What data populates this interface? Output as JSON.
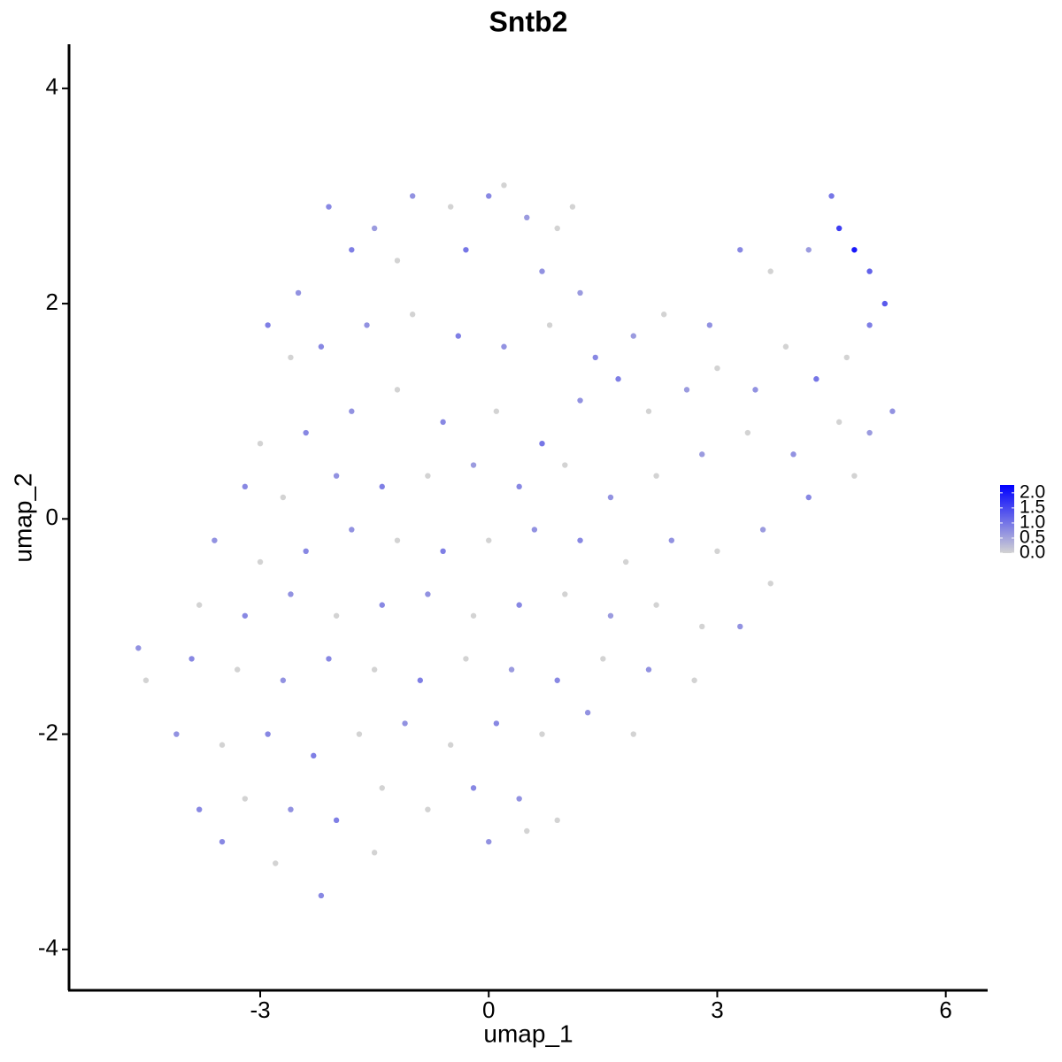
{
  "chart_data": {
    "type": "scatter",
    "title": "Sntb2",
    "x_label": "umap_1",
    "y_label": "umap_2",
    "xlim": [
      -5.51,
      6.55
    ],
    "ylim": [
      -4.38,
      4.41
    ],
    "xticks": [
      -3,
      0,
      3,
      6
    ],
    "yticks": [
      -4,
      -2,
      0,
      2,
      4
    ],
    "x": [
      -2.1,
      -1.5,
      -1,
      -0.5,
      0,
      0.2,
      0.5,
      0.9,
      1.1,
      -1.8,
      -1.2,
      -0.3,
      0.7,
      1.2,
      -2.5,
      -2.9,
      -2.6,
      -2.2,
      -1.6,
      -1,
      -0.4,
      0.2,
      0.8,
      1.4,
      1.9,
      2.3,
      2.9,
      3.3,
      3.7,
      4.2,
      4.5,
      4.6,
      4.8,
      5,
      5.2,
      5,
      4.7,
      4.3,
      3.9,
      3.5,
      3,
      2.6,
      2.1,
      1.7,
      1.2,
      0.7,
      0.1,
      -0.6,
      -1.2,
      -1.8,
      -2.4,
      -3,
      -3.2,
      -2.7,
      -2,
      -1.4,
      -0.8,
      -0.2,
      0.4,
      1,
      1.6,
      2.2,
      2.8,
      3.4,
      4,
      4.6,
      5,
      5.3,
      4.8,
      4.2,
      3.6,
      3,
      2.4,
      1.8,
      1.2,
      0.6,
      0,
      -0.6,
      -1.2,
      -1.8,
      -2.4,
      -3,
      -3.6,
      -3.8,
      -3.2,
      -2.6,
      -2,
      -1.4,
      -0.8,
      -0.2,
      0.4,
      1,
      1.6,
      2.2,
      2.8,
      3.3,
      3.7,
      2.7,
      2.1,
      1.5,
      0.9,
      0.3,
      -0.3,
      -0.9,
      -1.5,
      -2.1,
      -2.7,
      -3.3,
      -3.9,
      -4.6,
      -4.5,
      -4.1,
      -3.5,
      -2.9,
      -2.3,
      -1.7,
      -1.1,
      -0.5,
      0.1,
      0.7,
      1.3,
      1.9,
      -3.8,
      -3.2,
      -2.6,
      -2,
      -1.4,
      -0.8,
      -0.2,
      0.4,
      0.9,
      -3.5,
      -2.8,
      -2.2,
      -1.5,
      0,
      0.5
    ],
    "y": [
      2.9,
      2.7,
      3,
      2.9,
      3,
      3.1,
      2.8,
      2.7,
      2.9,
      2.5,
      2.4,
      2.5,
      2.3,
      2.1,
      2.1,
      1.8,
      1.5,
      1.6,
      1.8,
      1.9,
      1.7,
      1.6,
      1.8,
      1.5,
      1.7,
      1.9,
      1.8,
      2.5,
      2.3,
      2.5,
      3,
      2.7,
      2.5,
      2.3,
      2,
      1.8,
      1.5,
      1.3,
      1.6,
      1.2,
      1.4,
      1.2,
      1,
      1.3,
      1.1,
      0.7,
      1,
      0.9,
      1.2,
      1,
      0.8,
      0.7,
      0.3,
      0.2,
      0.4,
      0.3,
      0.4,
      0.5,
      0.3,
      0.5,
      0.2,
      0.4,
      0.6,
      0.8,
      0.6,
      0.9,
      0.8,
      1,
      0.4,
      0.2,
      -0.1,
      -0.3,
      -0.2,
      -0.4,
      -0.2,
      -0.1,
      -0.2,
      -0.3,
      -0.2,
      -0.1,
      -0.3,
      -0.4,
      -0.2,
      -0.8,
      -0.9,
      -0.7,
      -0.9,
      -0.8,
      -0.7,
      -0.9,
      -0.8,
      -0.7,
      -0.9,
      -0.8,
      -1,
      -1,
      -0.6,
      -1.5,
      -1.4,
      -1.3,
      -1.5,
      -1.4,
      -1.3,
      -1.5,
      -1.4,
      -1.3,
      -1.5,
      -1.4,
      -1.3,
      -1.2,
      -1.5,
      -2,
      -2.1,
      -2,
      -2.2,
      -2,
      -1.9,
      -2.1,
      -1.9,
      -2,
      -1.8,
      -2,
      -2.7,
      -2.6,
      -2.7,
      -2.8,
      -2.5,
      -2.7,
      -2.5,
      -2.6,
      -2.8,
      -3,
      -3.2,
      -3.5,
      -3.1,
      -3,
      -2.9
    ],
    "values": [
      0.8,
      0.6,
      0.7,
      0,
      0.8,
      0,
      0.6,
      0,
      0,
      0.9,
      0,
      1,
      0.7,
      0.6,
      0.7,
      0.9,
      0,
      0.8,
      0.7,
      0,
      0.9,
      0.7,
      0,
      0.8,
      0.6,
      0,
      0.7,
      0.8,
      0,
      0.6,
      1,
      1.6,
      2,
      1.2,
      1.3,
      0.9,
      0,
      1,
      0,
      0.7,
      0,
      0.6,
      0,
      0.9,
      0.7,
      1,
      0,
      0.8,
      0,
      0.7,
      0.8,
      0,
      0.8,
      0,
      0.7,
      0.9,
      0,
      0.6,
      0.8,
      0,
      0.7,
      0,
      0.6,
      0,
      0.7,
      0,
      0.6,
      0.7,
      0,
      0.8,
      0.6,
      0,
      0.7,
      0,
      0.8,
      0.7,
      0,
      0.9,
      0,
      0.7,
      0.8,
      0,
      0.7,
      0,
      0.8,
      0.7,
      0,
      0.8,
      0.7,
      0,
      0.8,
      0,
      0.6,
      0,
      0,
      0.7,
      0,
      0,
      0.7,
      0,
      0.8,
      0.6,
      0,
      0.9,
      0,
      0.8,
      0.7,
      0,
      0.8,
      0.7,
      0,
      0.7,
      0,
      0.8,
      0.9,
      0,
      0.7,
      0,
      0.8,
      0,
      0.7,
      0,
      0.8,
      0,
      0.7,
      0.9,
      0,
      0,
      0.8,
      0.7,
      0,
      0.8,
      0,
      0.8,
      0,
      0.7,
      0
    ],
    "color_low": "#d3d3d3",
    "color_high": "#0000ff",
    "colorbar_lim": [
      0,
      2.26
    ],
    "colorbar_ticks": [
      {
        "value": 0,
        "label": "0.0"
      },
      {
        "value": 0.5,
        "label": "0.5"
      },
      {
        "value": 1,
        "label": "1.0"
      },
      {
        "value": 1.5,
        "label": "1.5"
      },
      {
        "value": 2,
        "label": "2.0"
      }
    ]
  }
}
